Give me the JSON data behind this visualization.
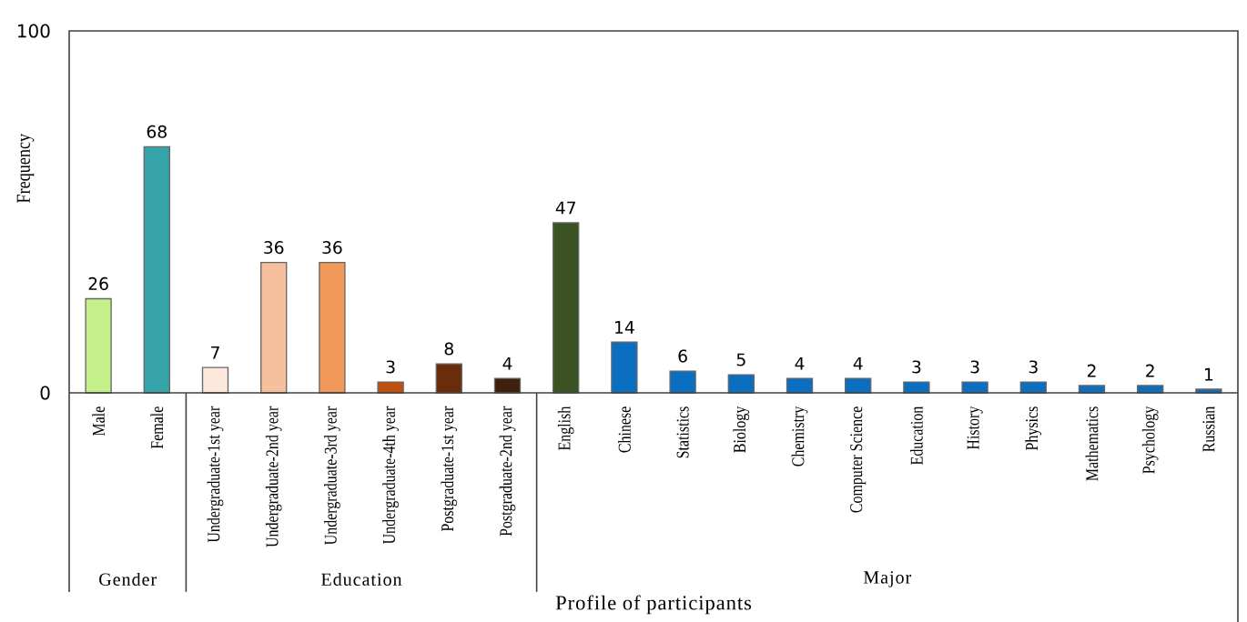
{
  "chart_data": {
    "type": "bar",
    "ylabel": "Frequency",
    "xlabel": "Profile of participants",
    "categories": [
      "Male",
      "Female",
      "Undergraduate-1st year",
      "Undergraduate-2nd year",
      "Undergraduate-3rd year",
      "Undergraduate-4th year",
      "Postgraduate-1st year",
      "Postgraduate-2nd year",
      "English",
      "Chinese",
      "Statistics",
      "Biology",
      "Chemistry",
      "Computer Science",
      "Education",
      "History",
      "Physics",
      "Mathematics",
      "Psychology",
      "Russian"
    ],
    "values": [
      26,
      68,
      7,
      36,
      36,
      3,
      8,
      4,
      47,
      14,
      6,
      5,
      4,
      4,
      3,
      3,
      3,
      2,
      2,
      1
    ],
    "colors": [
      "#c5ef8a",
      "#35a3a8",
      "#fde8dc",
      "#f6c09c",
      "#f0995a",
      "#c0500e",
      "#6b2c0c",
      "#3f200e",
      "#3b5323",
      "#0b6fc1",
      "#0b6fc1",
      "#0b6fc1",
      "#0b6fc1",
      "#0b6fc1",
      "#0b6fc1",
      "#0b6fc1",
      "#0b6fc1",
      "#0b6fc1",
      "#0b6fc1",
      "#0b6fc1"
    ],
    "ylim": [
      0,
      100
    ],
    "yticks": [
      0,
      100
    ],
    "data_labels": true,
    "annotations": [
      "Gender",
      "Education",
      "Major"
    ]
  }
}
